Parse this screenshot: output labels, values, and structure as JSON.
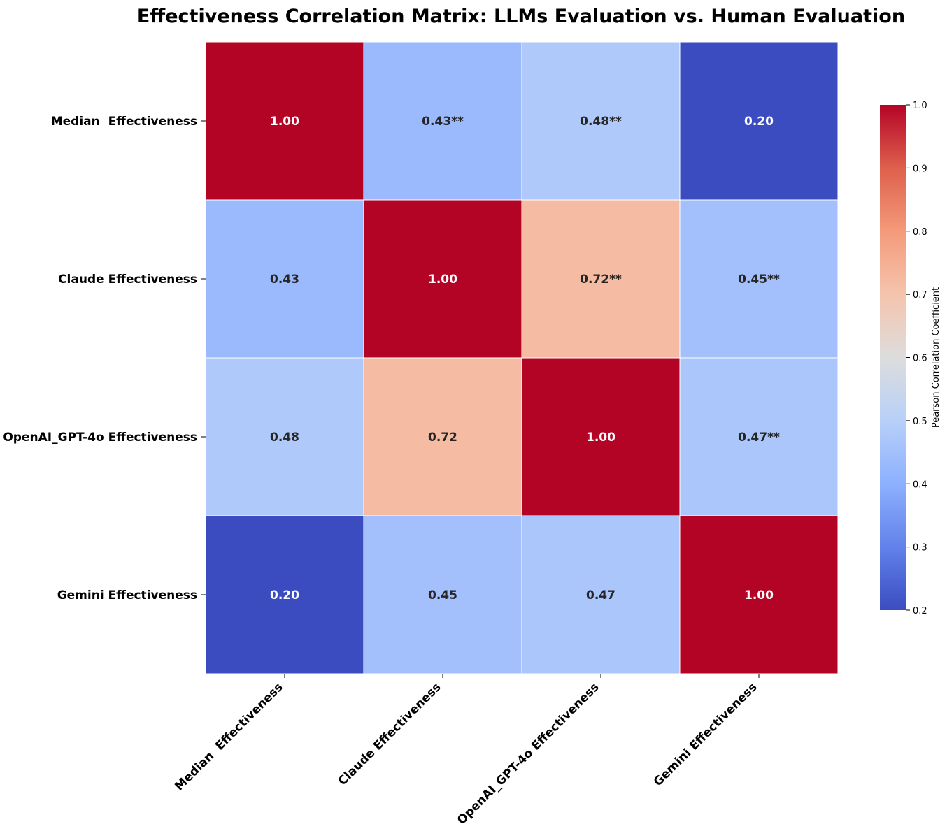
{
  "chart_data": {
    "type": "heatmap",
    "title": "Effectiveness Correlation Matrix: LLMs Evaluation vs. Human Evaluation",
    "rows": [
      "Median  Effectiveness",
      "Claude Effectiveness",
      "OpenAI_GPT-4o Effectiveness",
      "Gemini Effectiveness"
    ],
    "columns": [
      "Median  Effectiveness",
      "Claude Effectiveness",
      "OpenAI_GPT-4o Effectiveness",
      "Gemini Effectiveness"
    ],
    "values": [
      [
        1.0,
        0.43,
        0.48,
        0.2
      ],
      [
        0.43,
        1.0,
        0.72,
        0.45
      ],
      [
        0.48,
        0.72,
        1.0,
        0.47
      ],
      [
        0.2,
        0.45,
        0.47,
        1.0
      ]
    ],
    "cell_labels": [
      [
        "1.00",
        "0.43**",
        "0.48**",
        "0.20"
      ],
      [
        "0.43",
        "1.00",
        "0.72**",
        "0.45**"
      ],
      [
        "0.48",
        "0.72",
        "1.00",
        "0.47**"
      ],
      [
        "0.20",
        "0.45",
        "0.47",
        "1.00"
      ]
    ],
    "colormap": "coolwarm",
    "colorbar": {
      "label": "Pearson Correlation Coefficient",
      "range": [
        0.2,
        1.0
      ],
      "ticks": [
        "0.2",
        "0.3",
        "0.4",
        "0.5",
        "0.6",
        "0.7",
        "0.8",
        "0.9",
        "1.0"
      ]
    }
  }
}
